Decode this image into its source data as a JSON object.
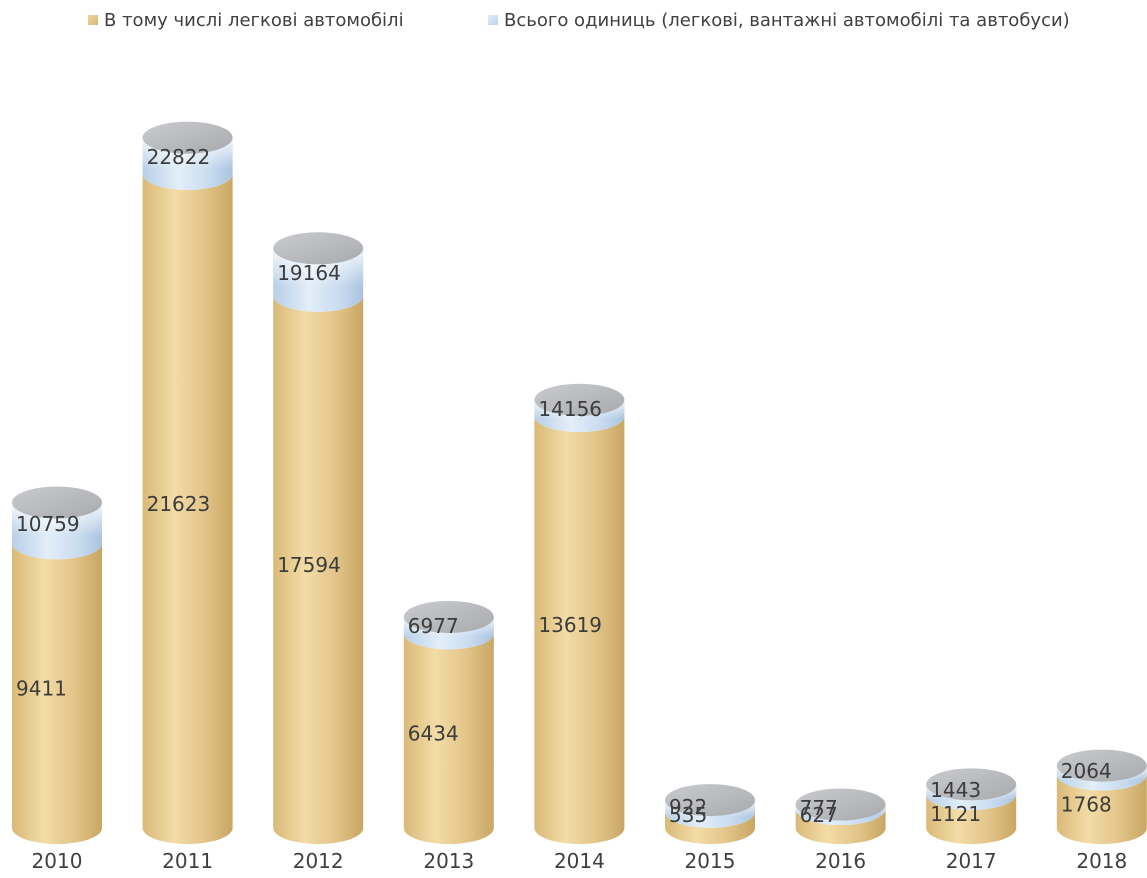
{
  "chart_data": {
    "type": "bar",
    "categories": [
      "2010",
      "2011",
      "2012",
      "2013",
      "2014",
      "2015",
      "2016",
      "2017",
      "2018"
    ],
    "series": [
      {
        "name": "В тому числі легкові автомобілі",
        "values": [
          9411,
          21623,
          17594,
          6434,
          13619,
          535,
          627,
          1121,
          1768
        ]
      },
      {
        "name": "Всього одиниць (легкові, вантажні автомобілі та автобуси)",
        "values": [
          10759,
          22822,
          19164,
          6977,
          14156,
          922,
          777,
          1443,
          2064
        ]
      }
    ],
    "ylim": [
      0,
      24000
    ],
    "legend_position": "top",
    "grid": false,
    "colors": {
      "cars": "#e6c98c",
      "total": "#c4daf0",
      "top": "#b8babd"
    }
  }
}
